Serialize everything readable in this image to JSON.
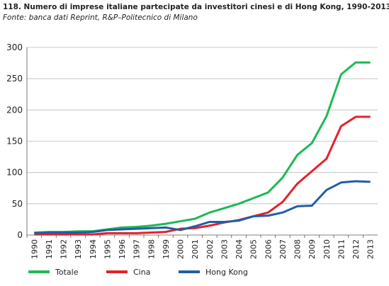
{
  "chart_data": {
    "type": "line",
    "title": "118. Numero di imprese italiane partecipate da investitori cinesi e di Hong Kong, 1990-2013",
    "subtitle": "Fonte: banca dati Reprint, R&P–Politecnico di Milano",
    "categories": [
      "1990",
      "1991",
      "1992",
      "1993",
      "1994",
      "1995",
      "1996",
      "1997",
      "1998",
      "1999",
      "2000",
      "2001",
      "2002",
      "2003",
      "2004",
      "2005",
      "2006",
      "2007",
      "2008",
      "2009",
      "2010",
      "2011",
      "2012",
      "2013"
    ],
    "series": [
      {
        "name": "Totale",
        "color": "#1db954",
        "values": [
          4,
          5,
          5,
          6,
          6,
          9,
          12,
          13,
          15,
          18,
          22,
          26,
          36,
          43,
          50,
          59,
          68,
          92,
          128,
          147,
          190,
          257,
          276,
          276
        ]
      },
      {
        "name": "Cina",
        "color": "#e5202a",
        "values": [
          1,
          1,
          1,
          1,
          1,
          3,
          3,
          3,
          4,
          5,
          10,
          11,
          15,
          20,
          24,
          30,
          36,
          53,
          82,
          102,
          122,
          174,
          189,
          189
        ]
      },
      {
        "name": "Hong Kong",
        "color": "#1f5fa8",
        "values": [
          3,
          4,
          4,
          4,
          5,
          8,
          9,
          10,
          11,
          12,
          8,
          14,
          21,
          21,
          23,
          30,
          31,
          36,
          46,
          47,
          72,
          84,
          86,
          85
        ]
      }
    ],
    "ylim": [
      0,
      300
    ],
    "yticks": [
      0,
      50,
      100,
      150,
      200,
      250,
      300
    ],
    "grid": true,
    "legend": "bottom"
  }
}
